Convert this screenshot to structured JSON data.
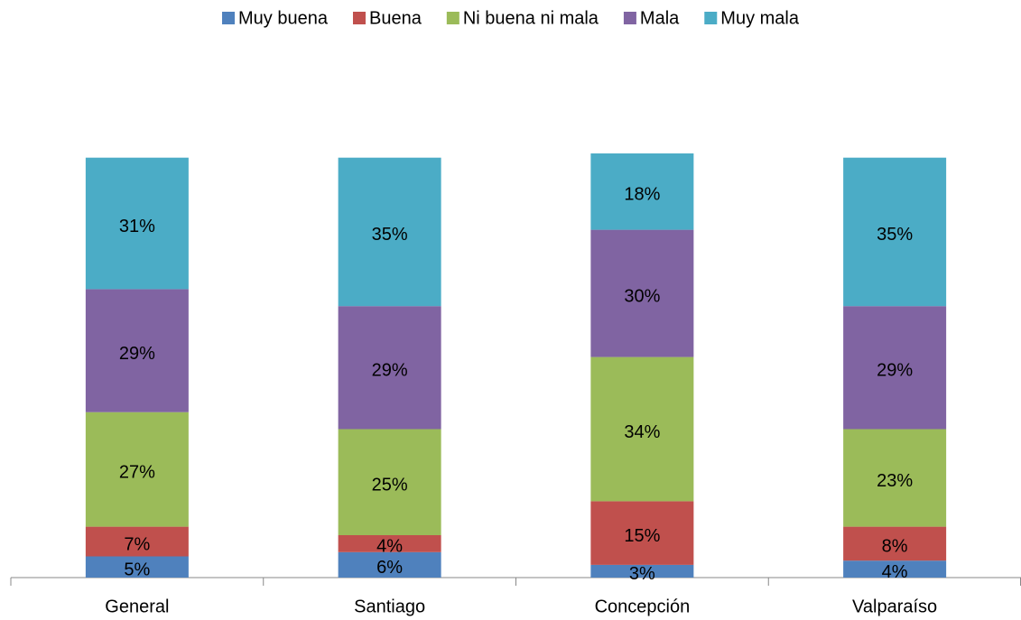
{
  "chart_data": {
    "type": "stacked_bar",
    "categories": [
      "General",
      "Santiago",
      "Concepción",
      "Valparaíso"
    ],
    "series": [
      {
        "name": "Muy buena",
        "color": "#4f81bd",
        "values": [
          5,
          6,
          3,
          4
        ],
        "value_labels": [
          "5%",
          "6%",
          "3%",
          "4%"
        ]
      },
      {
        "name": "Buena",
        "color": "#c0504d",
        "values": [
          7,
          4,
          15,
          8
        ],
        "value_labels": [
          "7%",
          "4%",
          "15%",
          "8%"
        ]
      },
      {
        "name": "Ni buena ni mala",
        "color": "#9bbb59",
        "values": [
          27,
          25,
          34,
          23
        ],
        "value_labels": [
          "27%",
          "25%",
          "34%",
          "23%"
        ]
      },
      {
        "name": "Mala",
        "color": "#8064a2",
        "values": [
          29,
          29,
          30,
          29
        ],
        "value_labels": [
          "29%",
          "29%",
          "30%",
          "29%"
        ]
      },
      {
        "name": "Muy mala",
        "color": "#4bacc6",
        "values": [
          31,
          35,
          18,
          35
        ],
        "value_labels": [
          "31%",
          "35%",
          "18%",
          "35%"
        ]
      }
    ],
    "ylim": [
      0,
      100
    ],
    "legend": "top"
  }
}
